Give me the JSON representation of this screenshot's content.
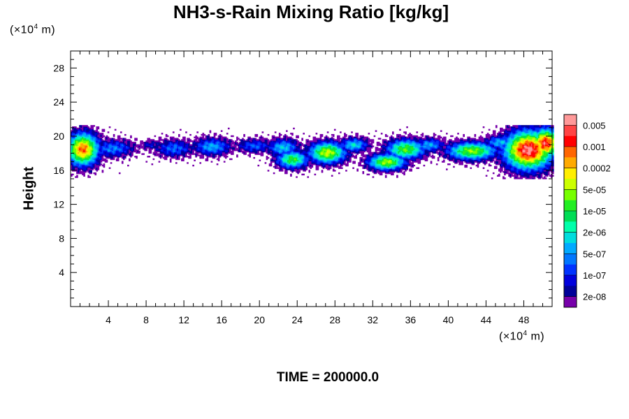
{
  "chart_data": {
    "type": "heatmap",
    "title": "NH3-s-Rain Mixing Ratio [kg/kg]",
    "ylabel": "Height",
    "x_unit_label": {
      "prefix": "(×10",
      "exp": "4",
      "suffix": " m)"
    },
    "y_unit_label": {
      "prefix": "(×10",
      "exp": "4",
      "suffix": " m)"
    },
    "x_ticks": [
      4,
      8,
      12,
      16,
      20,
      24,
      28,
      32,
      36,
      40,
      44,
      48
    ],
    "y_ticks": [
      4,
      8,
      12,
      16,
      20,
      24,
      28
    ],
    "xlim": [
      0,
      51
    ],
    "ylim": [
      0,
      30
    ],
    "colorbar": {
      "labels": [
        "0.005",
        "0.001",
        "0.0002",
        "5e-05",
        "1e-05",
        "2e-06",
        "5e-07",
        "1e-07",
        "2e-08"
      ],
      "colors": [
        "#ff9999",
        "#ff4444",
        "#ff0000",
        "#ff6600",
        "#ffaa00",
        "#ffee00",
        "#ccff00",
        "#77ff00",
        "#22ee22",
        "#00dd55",
        "#00ffaa",
        "#00dddd",
        "#00aaff",
        "#0077ff",
        "#0033ff",
        "#0000dd",
        "#000099",
        "#7700aa"
      ]
    },
    "blobs": [
      {
        "cx": 1.3,
        "cy": 18.5,
        "rx": 1.6,
        "ry": 1.8,
        "peak": 0.82
      },
      {
        "cx": 4.5,
        "cy": 18.6,
        "rx": 2.2,
        "ry": 1.0,
        "peak": 0.3
      },
      {
        "cx": 8.5,
        "cy": 19.0,
        "rx": 1.2,
        "ry": 0.6,
        "peak": 0.18
      },
      {
        "cx": 11.0,
        "cy": 18.6,
        "rx": 2.0,
        "ry": 1.0,
        "peak": 0.28
      },
      {
        "cx": 15.0,
        "cy": 18.8,
        "rx": 2.0,
        "ry": 1.0,
        "peak": 0.34
      },
      {
        "cx": 19.5,
        "cy": 18.9,
        "rx": 2.0,
        "ry": 0.8,
        "peak": 0.26
      },
      {
        "cx": 23.5,
        "cy": 17.3,
        "rx": 1.6,
        "ry": 1.0,
        "peak": 0.55
      },
      {
        "cx": 22.5,
        "cy": 18.7,
        "rx": 1.6,
        "ry": 1.0,
        "peak": 0.38
      },
      {
        "cx": 27.2,
        "cy": 18.1,
        "rx": 1.9,
        "ry": 1.2,
        "peak": 0.66
      },
      {
        "cx": 30.0,
        "cy": 19.0,
        "rx": 1.5,
        "ry": 0.8,
        "peak": 0.4
      },
      {
        "cx": 33.5,
        "cy": 17.0,
        "rx": 1.9,
        "ry": 0.9,
        "peak": 0.64
      },
      {
        "cx": 35.5,
        "cy": 18.5,
        "rx": 2.0,
        "ry": 1.1,
        "peak": 0.58
      },
      {
        "cx": 38.0,
        "cy": 19.0,
        "rx": 1.6,
        "ry": 0.8,
        "peak": 0.34
      },
      {
        "cx": 42.5,
        "cy": 18.3,
        "rx": 2.5,
        "ry": 1.0,
        "peak": 0.62
      },
      {
        "cx": 45.5,
        "cy": 19.3,
        "rx": 1.6,
        "ry": 0.8,
        "peak": 0.36
      },
      {
        "cx": 48.5,
        "cy": 18.4,
        "rx": 2.4,
        "ry": 2.1,
        "peak": 0.97
      },
      {
        "cx": 50.3,
        "cy": 19.2,
        "rx": 1.4,
        "ry": 1.6,
        "peak": 0.92
      }
    ]
  },
  "time_label": "TIME = 200000.0"
}
